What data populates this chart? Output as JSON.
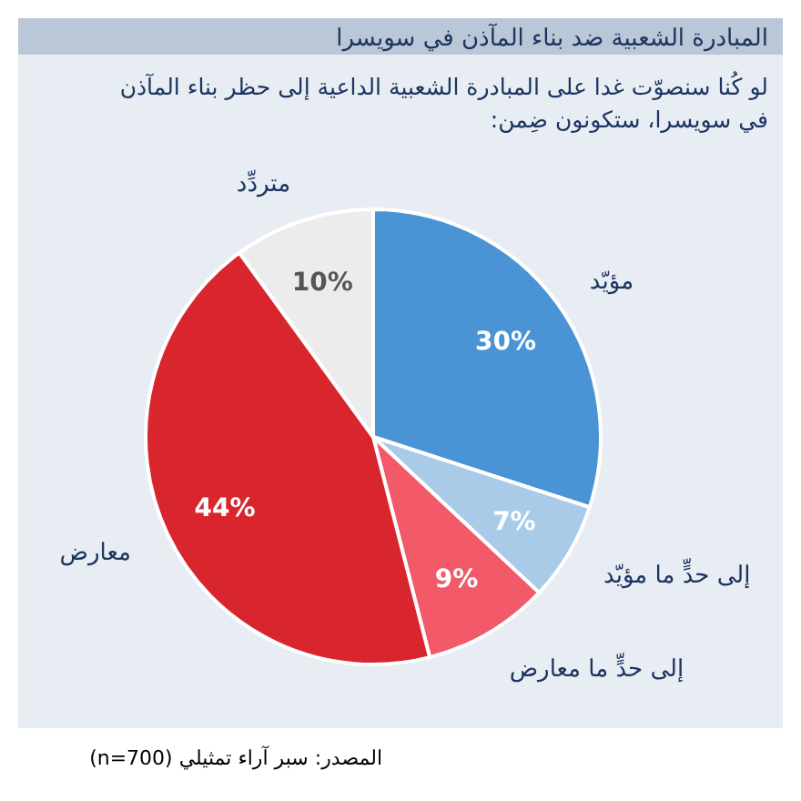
{
  "chart_data": {
    "type": "pie",
    "title": "المبادرة الشعبية ضد بناء المآذن في سويسرا",
    "subtitle": "لو كُنا سنصوّت غدا على المبادرة الشعبية الداعية إلى حظر بناء المآذن في سويسرا، ستكونون ضِمن:",
    "categories": [
      "مؤيّد",
      "إلى حدٍّ ما مؤيّد",
      "إلى حدٍّ ما معارض",
      "معارض",
      "متردِّد"
    ],
    "values": [
      30,
      7,
      9,
      44,
      10
    ],
    "colors": [
      "#4a94d6",
      "#a9cbe8",
      "#f25a6a",
      "#d9262e",
      "#ececec"
    ],
    "value_labels": [
      "30%",
      "7%",
      "9%",
      "44%",
      "10%"
    ],
    "annotations": [
      "المصدر: سبر آراء تمثيلي (n=700)"
    ]
  }
}
